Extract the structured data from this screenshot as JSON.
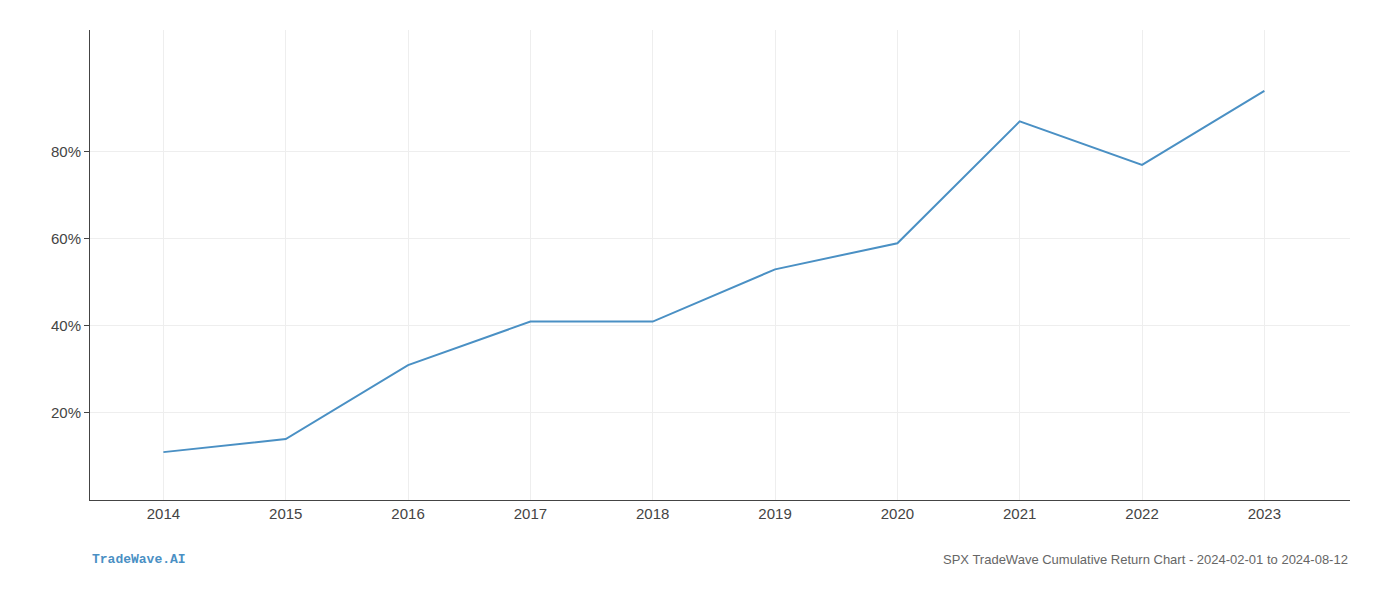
{
  "chart_data": {
    "type": "line",
    "title": "SPX TradeWave Cumulative Return Chart - 2024-02-01 to 2024-08-12",
    "annotations": [
      {
        "text": "TradeWave.AI"
      }
    ],
    "x": [
      2014,
      2015,
      2016,
      2017,
      2018,
      2019,
      2020,
      2021,
      2022,
      2023
    ],
    "values": [
      11,
      14,
      31,
      41,
      41,
      53,
      59,
      87,
      77,
      94
    ],
    "color": "#4a90c4",
    "xlim": [
      2013.4,
      2023.7
    ],
    "xticks": [
      2014,
      2015,
      2016,
      2017,
      2018,
      2019,
      2020,
      2021,
      2022,
      2023
    ],
    "ylim": [
      0,
      108
    ],
    "yticks": [
      {
        "value": 20,
        "label": "20%"
      },
      {
        "value": 40,
        "label": "40%"
      },
      {
        "value": 60,
        "label": "60%"
      },
      {
        "value": 80,
        "label": "80%"
      }
    ],
    "grid": true
  }
}
